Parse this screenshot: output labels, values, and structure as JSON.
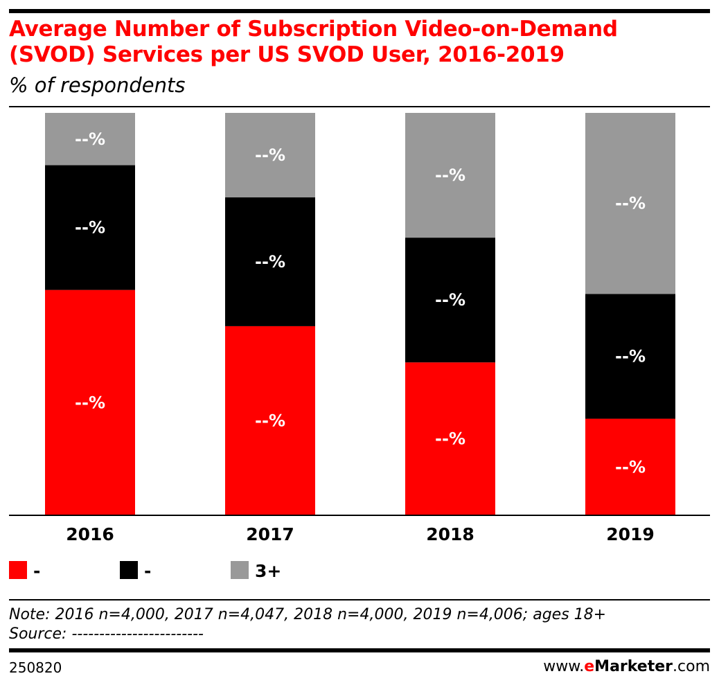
{
  "chart_data": {
    "type": "bar",
    "stacked": true,
    "title": "Average Number of Subscription Video-on-Demand (SVOD) Services per US SVOD User, 2016-2019",
    "subtitle": "% of respondents",
    "categories": [
      "2016",
      "2017",
      "2018",
      "2019"
    ],
    "series": [
      {
        "name": "-",
        "color": "#ff0000",
        "values": [
          56,
          47,
          38,
          24
        ],
        "labels": [
          "--%",
          "--%",
          "--%",
          "--%"
        ]
      },
      {
        "name": "-",
        "color": "#000000",
        "values": [
          31,
          32,
          31,
          31
        ],
        "labels": [
          "--%",
          "--%",
          "--%",
          "--%"
        ]
      },
      {
        "name": "3+",
        "color": "#999999",
        "values": [
          13,
          21,
          31,
          45
        ],
        "labels": [
          "--%",
          "--%",
          "--%",
          "--%"
        ]
      }
    ],
    "ylim": [
      0,
      100
    ],
    "legend": "bottom-left",
    "grid": false
  },
  "title_line1": "Average Number of Subscription Video-on-Demand",
  "title_line2": "(SVOD) Services per US SVOD User, 2016-2019",
  "subtitle": "% of respondents",
  "note": "Note: 2016 n=4,000, 2017 n=4,047, 2018 n=4,000, 2019 n=4,006; ages 18+",
  "source": "Source: ------------------------",
  "chart_id": "250820",
  "brand": {
    "prefix": "www.",
    "e": "e",
    "name": "Marketer",
    "suffix": ".com"
  }
}
